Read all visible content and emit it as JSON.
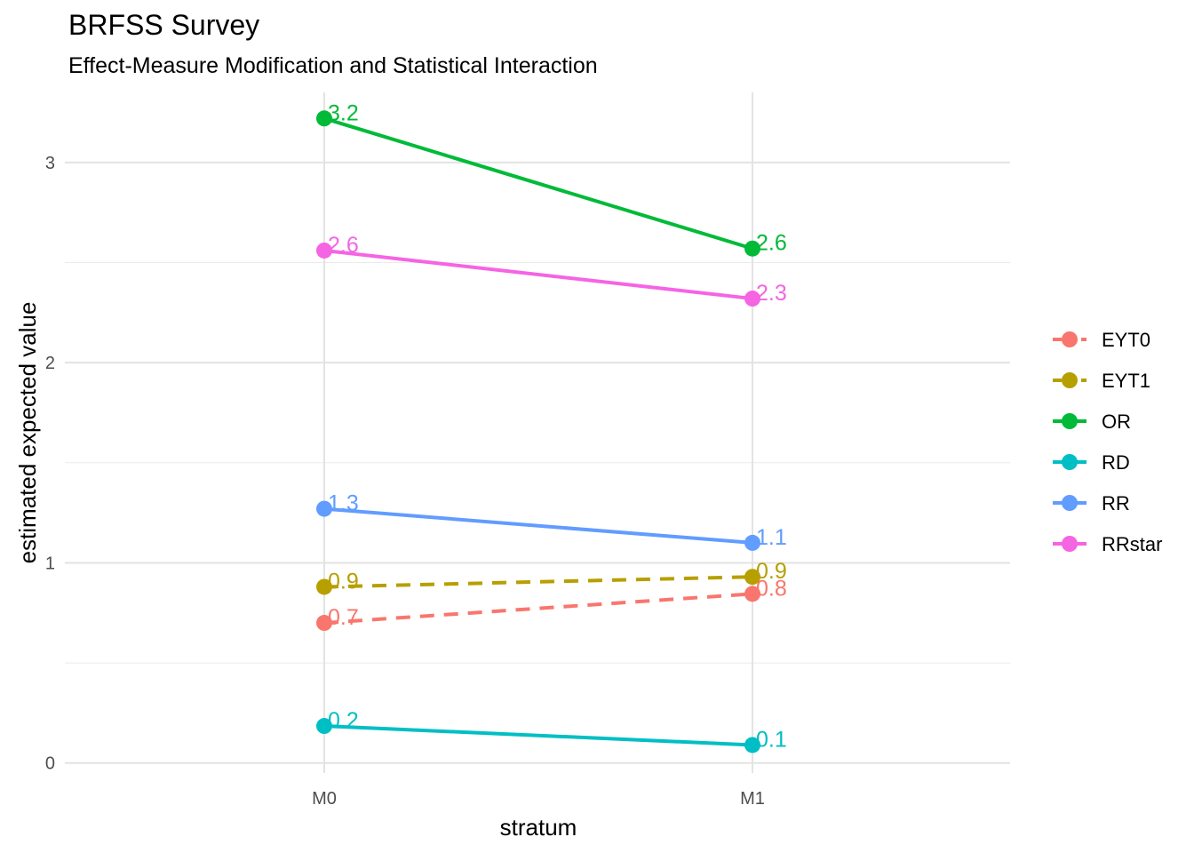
{
  "chart_data": {
    "type": "line",
    "title": "BRFSS Survey",
    "subtitle": "Effect-Measure Modification and Statistical Interaction",
    "xlabel": "stratum",
    "ylabel": "estimated expected value",
    "categories": [
      "M0",
      "M1"
    ],
    "ylim": [
      -0.05,
      3.35
    ],
    "yticks": [
      0,
      1,
      2,
      3
    ],
    "grid": true,
    "legend_position": "right",
    "series": [
      {
        "name": "EYT0",
        "color": "#F8766D",
        "dashed": true,
        "values": [
          0.7,
          0.845
        ],
        "labels": [
          "0.7",
          "0.8"
        ]
      },
      {
        "name": "EYT1",
        "color": "#B79F00",
        "dashed": true,
        "values": [
          0.88,
          0.93
        ],
        "labels": [
          "0.9",
          "0.9"
        ]
      },
      {
        "name": "OR",
        "color": "#00BA38",
        "dashed": false,
        "values": [
          3.22,
          2.57
        ],
        "labels": [
          "3.2",
          "2.6"
        ]
      },
      {
        "name": "RD",
        "color": "#00BFC4",
        "dashed": false,
        "values": [
          0.185,
          0.09
        ],
        "labels": [
          "0.2",
          "0.1"
        ]
      },
      {
        "name": "RR",
        "color": "#619CFF",
        "dashed": false,
        "values": [
          1.27,
          1.1
        ],
        "labels": [
          "1.3",
          "1.1"
        ]
      },
      {
        "name": "RRstar",
        "color": "#F564E3",
        "dashed": false,
        "values": [
          2.56,
          2.32
        ],
        "labels": [
          "2.6",
          "2.3"
        ]
      }
    ]
  }
}
